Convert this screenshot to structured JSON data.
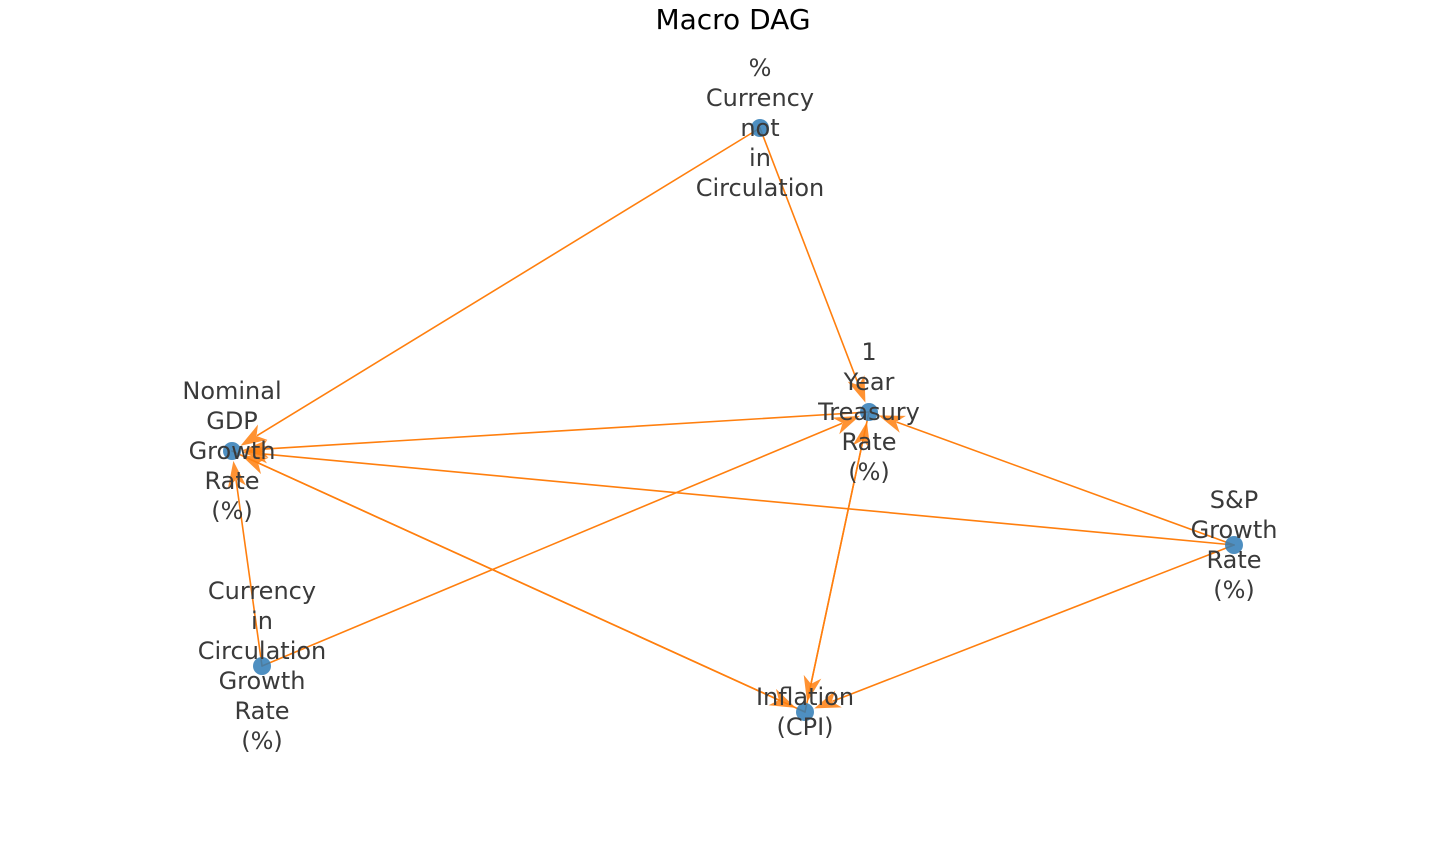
{
  "title": "Macro DAG",
  "colors": {
    "node": "#2f7bb6",
    "edge": "#ff7f0e",
    "label": "#3a3a3a"
  },
  "nodes": [
    {
      "id": "currency_not_circ",
      "lines": [
        "%",
        "Currency",
        "not",
        "in",
        "Circulation"
      ]
    },
    {
      "id": "treasury",
      "lines": [
        "1",
        "Year",
        "Treasury",
        "Rate",
        "(%)"
      ]
    },
    {
      "id": "gdp",
      "lines": [
        "Nominal",
        "GDP",
        "Growth",
        "Rate",
        "(%)"
      ]
    },
    {
      "id": "sp",
      "lines": [
        "S&P",
        "Growth",
        "Rate",
        "(%)"
      ]
    },
    {
      "id": "currency_circ",
      "lines": [
        "Currency",
        "in",
        "Circulation",
        "Growth",
        "Rate",
        "(%)"
      ]
    },
    {
      "id": "inflation",
      "lines": [
        "Inflation",
        "(CPI)"
      ]
    }
  ],
  "edges": [
    {
      "from": "currency_not_circ",
      "to": "gdp"
    },
    {
      "from": "currency_not_circ",
      "to": "treasury"
    },
    {
      "from": "treasury",
      "to": "gdp"
    },
    {
      "from": "treasury",
      "to": "inflation"
    },
    {
      "from": "inflation",
      "to": "treasury"
    },
    {
      "from": "inflation",
      "to": "gdp"
    },
    {
      "from": "gdp",
      "to": "inflation"
    },
    {
      "from": "currency_circ",
      "to": "gdp"
    },
    {
      "from": "currency_circ",
      "to": "treasury"
    },
    {
      "from": "sp",
      "to": "gdp"
    },
    {
      "from": "sp",
      "to": "treasury"
    },
    {
      "from": "sp",
      "to": "inflation"
    }
  ]
}
